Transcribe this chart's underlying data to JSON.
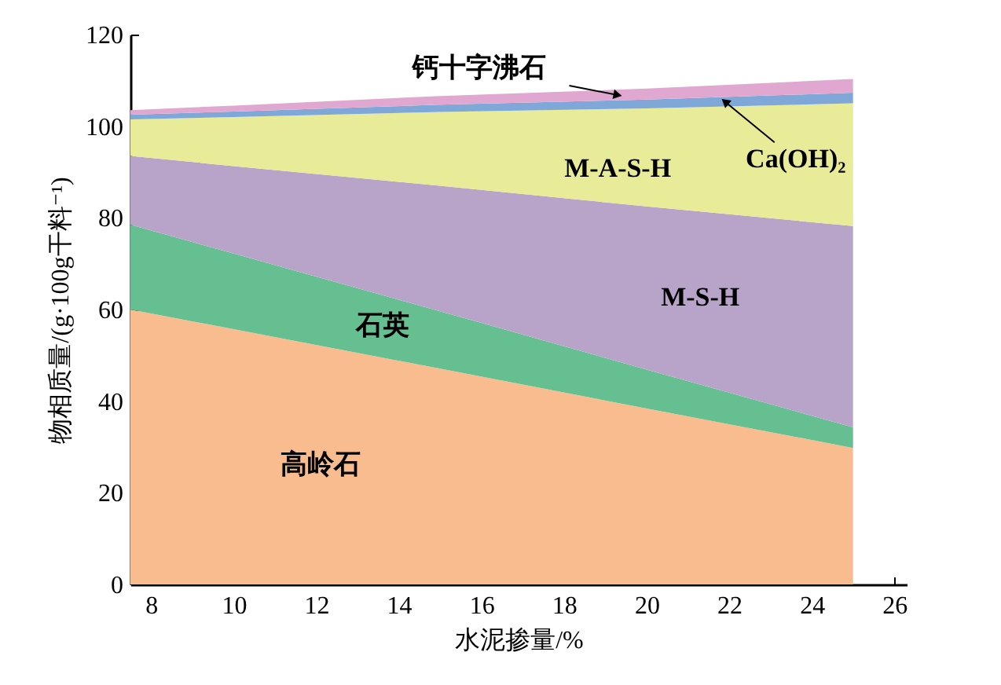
{
  "chart_data": {
    "type": "area",
    "stacked": true,
    "xlabel": "水泥掺量/%",
    "ylabel": "物相质量/(g·100g干料⁻¹)",
    "x": [
      7.5,
      10,
      15,
      20,
      25
    ],
    "series": [
      {
        "name": "高岭石",
        "color": "#f8bc8f",
        "values": [
          60,
          55.7,
          47.1,
          38.4,
          29.8
        ]
      },
      {
        "name": "石英",
        "color": "#66bf90",
        "values": [
          18.5,
          16.5,
          12.5,
          8.5,
          4.5
        ]
      },
      {
        "name": "M-S-H",
        "color": "#b7a4c8",
        "values": [
          15,
          19.1,
          27.4,
          35.6,
          43.9
        ]
      },
      {
        "name": "M-A-S-H",
        "color": "#e8eb98",
        "values": [
          8,
          10.7,
          16.1,
          21.4,
          26.8
        ]
      },
      {
        "name": "Ca(OH)₂",
        "color": "#7fa8d8",
        "values": [
          1,
          1.2,
          1.6,
          1.9,
          2.3
        ]
      },
      {
        "name": "钙十字沸石",
        "color": "#e0a8d0",
        "values": [
          1,
          1.3,
          1.9,
          2.4,
          3.0
        ]
      }
    ],
    "xlim": [
      7.5,
      26.3
    ],
    "xticks": [
      8,
      10,
      12,
      14,
      16,
      18,
      20,
      22,
      24,
      26
    ],
    "ylim": [
      0,
      120
    ],
    "yticks": [
      0,
      20,
      40,
      60,
      80,
      100,
      120
    ],
    "grid": false,
    "legend": false
  }
}
